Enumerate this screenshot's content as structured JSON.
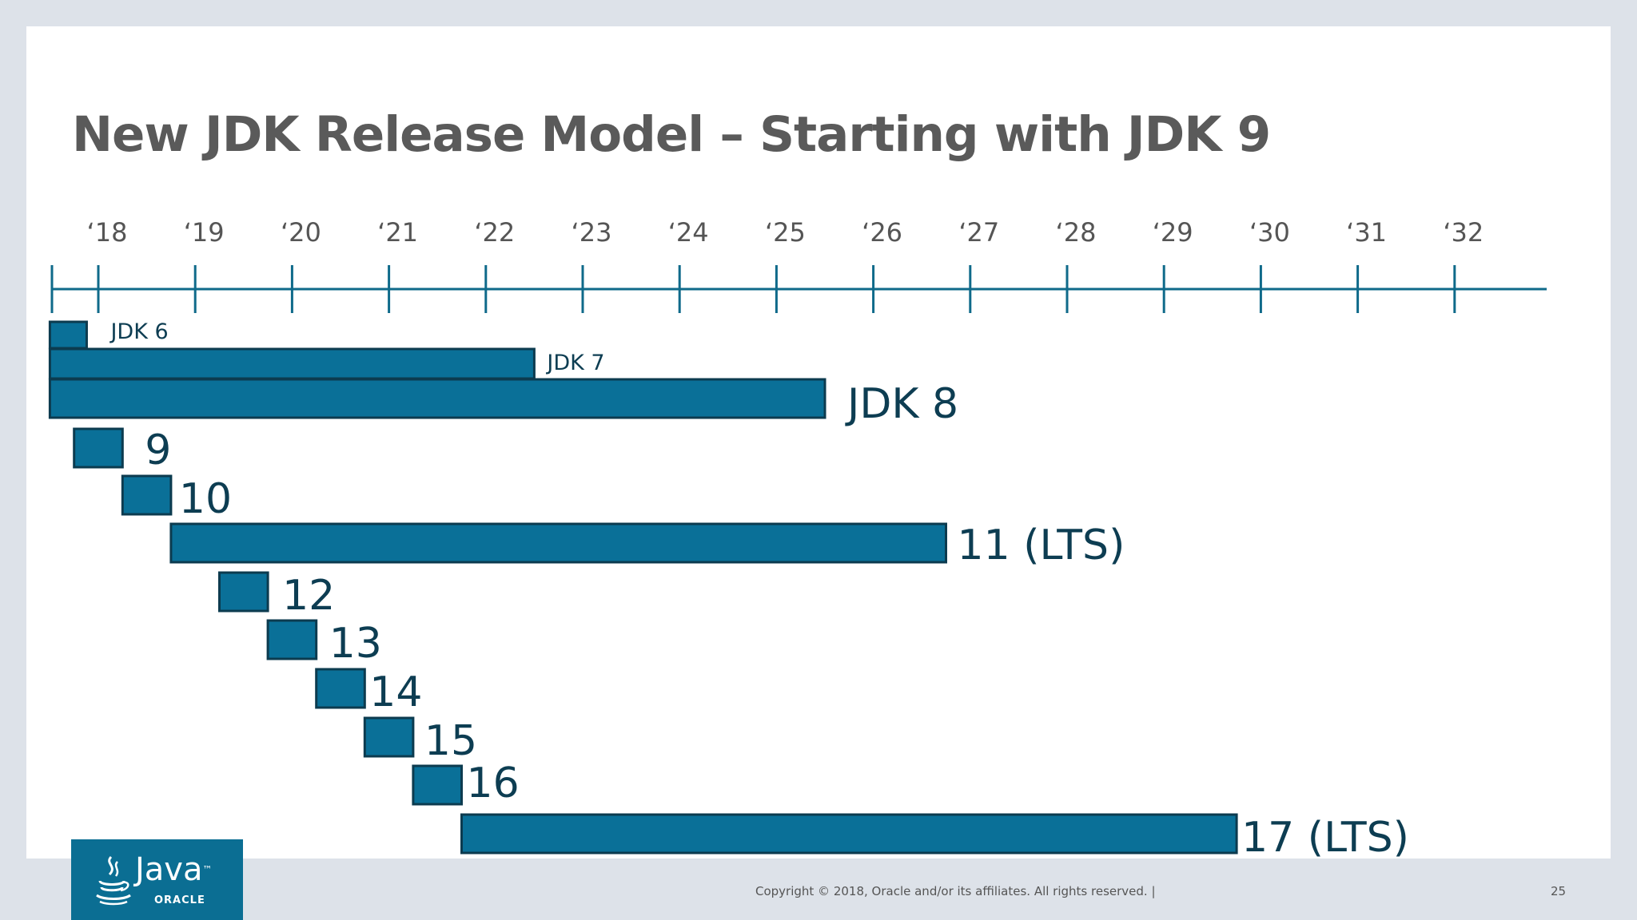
{
  "slide": {
    "title": "New JDK Release Model – Starting with JDK 9",
    "copyright": "Copyright © 2018, Oracle and/or its affiliates. All rights reserved.  |",
    "page_number": "25",
    "logo": {
      "brand": "Java",
      "trademark": "™",
      "sub": "ORACLE",
      "icon": "java-cup-icon"
    }
  },
  "colors": {
    "bar_fill": "#0a7098",
    "bar_stroke": "#0c3b4f",
    "axis": "#0f6a8a",
    "label": "#0d3d52",
    "title": "#5a5a5a"
  },
  "chart_data": {
    "type": "gantt",
    "title": "",
    "axis_ticks": [
      "‘18",
      "‘19",
      "‘20",
      "‘21",
      "‘22",
      "‘23",
      "‘24",
      "‘25",
      "‘26",
      "‘27",
      "‘28",
      "‘29",
      "‘30",
      "‘31",
      "‘32"
    ],
    "axis_years": [
      2018,
      2019,
      2020,
      2021,
      2022,
      2023,
      2024,
      2025,
      2026,
      2027,
      2028,
      2029,
      2030,
      2031,
      2032
    ],
    "releases": [
      {
        "label": "JDK 6",
        "start": 2017.5,
        "end": 2017.88,
        "label_size": "small"
      },
      {
        "label": "JDK 7",
        "start": 2017.5,
        "end": 2022.5,
        "label_size": "small"
      },
      {
        "label": "JDK 8",
        "start": 2017.5,
        "end": 2025.5,
        "label_size": "large"
      },
      {
        "label": "9",
        "start": 2017.75,
        "end": 2018.25,
        "label_size": "large"
      },
      {
        "label": "10",
        "start": 2018.25,
        "end": 2018.75,
        "label_size": "large"
      },
      {
        "label": "11 (LTS)",
        "start": 2018.75,
        "end": 2026.75,
        "label_size": "large"
      },
      {
        "label": "12",
        "start": 2019.25,
        "end": 2019.75,
        "label_size": "large"
      },
      {
        "label": "13",
        "start": 2019.75,
        "end": 2020.25,
        "label_size": "large"
      },
      {
        "label": "14",
        "start": 2020.25,
        "end": 2020.75,
        "label_size": "large"
      },
      {
        "label": "15",
        "start": 2020.75,
        "end": 2021.25,
        "label_size": "large"
      },
      {
        "label": "16",
        "start": 2021.25,
        "end": 2021.75,
        "label_size": "large"
      },
      {
        "label": "17 (LTS)",
        "start": 2021.75,
        "end": 2029.75,
        "label_size": "large"
      }
    ]
  }
}
